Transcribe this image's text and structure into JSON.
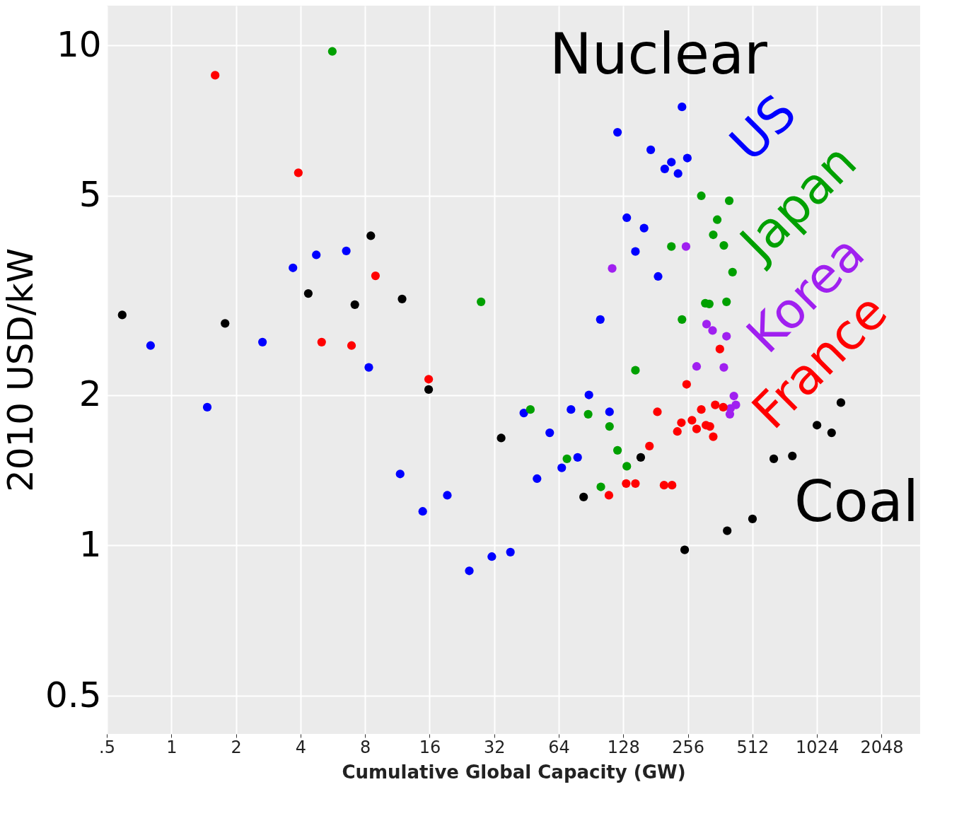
{
  "chart_data": {
    "type": "scatter",
    "xlabel": "Cumulative Global Capacity (GW)",
    "ylabel": "2010 USD/kW",
    "annotations": [
      "Nuclear"
    ],
    "log": "xy",
    "grid": true,
    "legend": false,
    "marker": "circle",
    "xlim": [
      0.5,
      3100
    ],
    "ylim": [
      0.42,
      12
    ],
    "xticks": [
      {
        "value": 0.5,
        "label": ".5"
      },
      1,
      2,
      4,
      8,
      16,
      32,
      64,
      128,
      256,
      512,
      1024,
      2048
    ],
    "yticks": [
      0.5,
      1,
      2,
      5,
      10
    ],
    "series": [
      {
        "name": "US",
        "color": "#0000ff",
        "x": [
          0.8,
          1.47,
          2.66,
          3.69,
          4.74,
          6.54,
          8.33,
          11.66,
          14.86,
          19.35,
          24.5,
          31.2,
          38.1,
          44.0,
          50.7,
          58.1,
          66.1,
          73.0,
          78.4,
          88.5,
          100,
          110.4,
          120.3,
          132.9,
          145.8,
          160,
          171.9,
          186,
          199.7,
          214.5,
          230.4,
          240.4,
          254.6
        ],
        "values": [
          2.51,
          1.89,
          2.55,
          3.59,
          3.81,
          3.88,
          2.27,
          1.39,
          1.17,
          1.26,
          0.89,
          0.95,
          0.97,
          1.84,
          1.36,
          1.68,
          1.43,
          1.87,
          1.5,
          2.0,
          2.83,
          1.85,
          6.7,
          4.52,
          3.87,
          4.31,
          6.18,
          3.45,
          5.66,
          5.84,
          5.54,
          7.53,
          5.95
        ]
      },
      {
        "name": "Japan",
        "color": "#00a000",
        "x": [
          5.63,
          27.8,
          47.2,
          87.8,
          69.9,
          110.4,
          120.3,
          132.9,
          100.6,
          145.8,
          214.5,
          240.4,
          295.7,
          399.1,
          350.9,
          336.2,
          376.8,
          413.6,
          308.7,
          322.2,
          387.7
        ],
        "values": [
          9.72,
          3.07,
          1.87,
          1.83,
          1.49,
          1.73,
          1.55,
          1.44,
          1.31,
          2.24,
          3.96,
          2.83,
          5.0,
          4.89,
          4.48,
          4.18,
          3.98,
          3.52,
          3.05,
          3.04,
          3.07
        ]
      },
      {
        "name": "Korea",
        "color": "#a020f0",
        "x": [
          113.6,
          251,
          313,
          333.8,
          387.7,
          281.3,
          376.8,
          419.6,
          428.7,
          401.9,
          404.7
        ],
        "values": [
          3.58,
          3.96,
          2.77,
          2.69,
          2.62,
          2.28,
          2.27,
          1.99,
          1.91,
          1.83,
          1.88
        ]
      },
      {
        "name": "France",
        "color": "#ff0000",
        "x": [
          1.6,
          3.91,
          8.95,
          5.02,
          6.92,
          15.84,
          252.7,
          361,
          184.6,
          295.7,
          238.8,
          267.6,
          343.5,
          374.2,
          281.3,
          310.9,
          324.5,
          228.7,
          336.2,
          169.5,
          132,
          145.8,
          198.3,
          216,
          109.7
        ],
        "values": [
          8.71,
          5.56,
          3.46,
          2.55,
          2.51,
          2.15,
          2.1,
          2.47,
          1.85,
          1.87,
          1.76,
          1.78,
          1.91,
          1.89,
          1.71,
          1.74,
          1.73,
          1.69,
          1.65,
          1.58,
          1.33,
          1.33,
          1.32,
          1.32,
          1.26
        ]
      },
      {
        "name": "Coal",
        "color": "#000000",
        "x": [
          0.59,
          1.78,
          4.35,
          7.17,
          8.51,
          11.91,
          15.84,
          34.5,
          83.6,
          154.4,
          247.4,
          390.6,
          512.5,
          644,
          786,
          1024,
          1198,
          1324
        ],
        "values": [
          2.89,
          2.78,
          3.19,
          3.03,
          4.16,
          3.11,
          2.05,
          1.64,
          1.25,
          1.5,
          0.98,
          1.07,
          1.13,
          1.49,
          1.51,
          1.74,
          1.68,
          1.93
        ]
      }
    ]
  }
}
